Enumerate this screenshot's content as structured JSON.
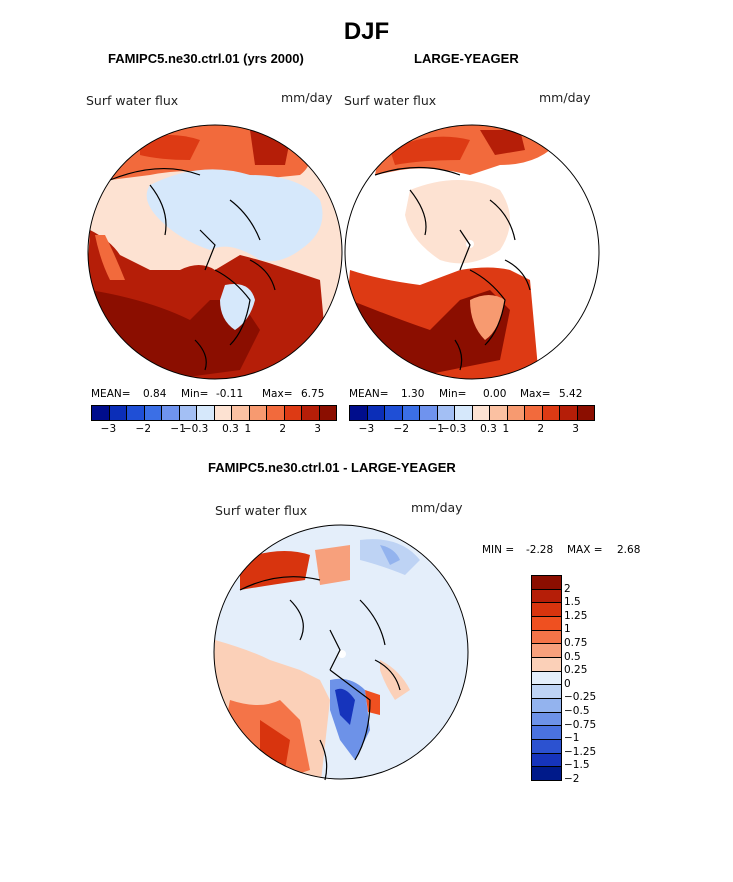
{
  "figure": {
    "title": "DJF",
    "panels": [
      {
        "title": "FAMIPC5.ne30.ctrl.01 (yrs 2000)",
        "field": "Surf water flux",
        "units": "mm/day",
        "stats": {
          "mean_label": "MEAN=",
          "mean": "0.84",
          "min_label": "Min=",
          "min": "-0.11",
          "max_label": "Max=",
          "max": "6.75"
        }
      },
      {
        "title": "LARGE-YEAGER",
        "field": "Surf water flux",
        "units": "mm/day",
        "stats": {
          "mean_label": "MEAN=",
          "mean": "1.30",
          "min_label": "Min=",
          "min": "0.00",
          "max_label": "Max=",
          "max": "5.42"
        }
      },
      {
        "title": "FAMIPC5.ne30.ctrl.01 - LARGE-YEAGER",
        "field": "Surf water flux",
        "units": "mm/day",
        "stats": {
          "min_label": "MIN =",
          "min": "-2.28",
          "max_label": "MAX =",
          "max": "2.68"
        }
      }
    ]
  },
  "colorbar_top": {
    "colors": [
      "#000d8c",
      "#0b2eb8",
      "#1f4fd6",
      "#3b6fe6",
      "#6f93ee",
      "#a3bff4",
      "#d6e8fb",
      "#fde2d2",
      "#fbc1a2",
      "#f79a70",
      "#f26a3c",
      "#dd3a14",
      "#b51e08",
      "#8b0e00"
    ],
    "tick_labels": [
      "-3",
      "-2",
      "-1",
      "-0.3",
      "0.3",
      "1",
      "2",
      "3"
    ]
  },
  "colorbar_diff": {
    "colors": [
      "#8b0e00",
      "#b51e08",
      "#d8340e",
      "#ef5020",
      "#f47448",
      "#f7a07c",
      "#fbd0b8",
      "#e4eefa",
      "#bed3f4",
      "#93b3ee",
      "#6d92e8",
      "#4a72e0",
      "#2c52d0",
      "#1634bc",
      "#001a8a"
    ],
    "tick_labels": [
      "2",
      "1.5",
      "1.25",
      "1",
      "0.75",
      "0.5",
      "0.25",
      "0",
      "-0.25",
      "-0.5",
      "-0.75",
      "-1",
      "-1.25",
      "-1.5",
      "-2"
    ]
  }
}
